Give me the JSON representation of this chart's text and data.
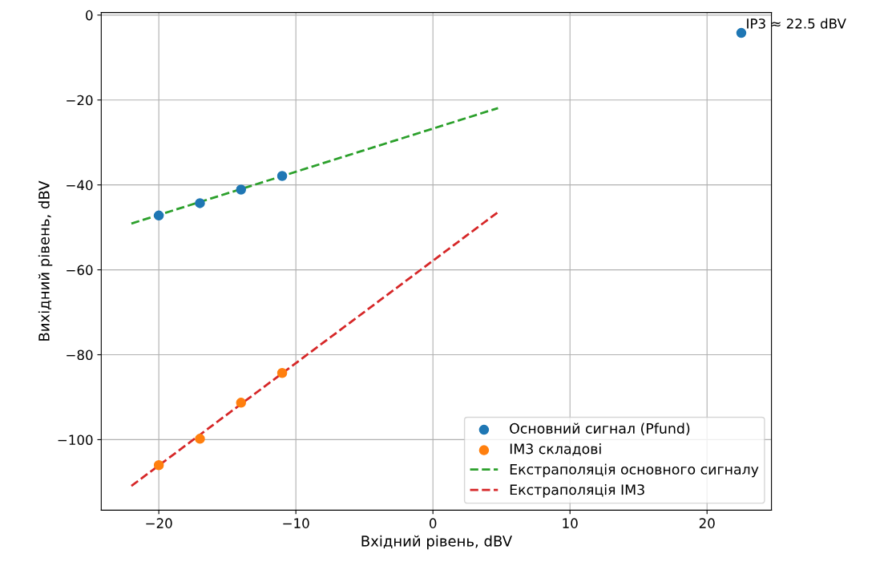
{
  "chart_data": {
    "type": "scatter",
    "xlabel": "Вхідний рівень, dBV",
    "ylabel": "Вихідний рівень, dBV",
    "xlim": [
      -24.2,
      24.7
    ],
    "ylim": [
      -116.6,
      0.6
    ],
    "xticks": [
      {
        "value": -20,
        "label": "−20"
      },
      {
        "value": -10,
        "label": "−10"
      },
      0,
      10,
      20
    ],
    "yticks": [
      0,
      {
        "value": -20,
        "label": "−20"
      },
      {
        "value": -40,
        "label": "−40"
      },
      {
        "value": -60,
        "label": "−60"
      },
      {
        "value": -80,
        "label": "−80"
      },
      {
        "value": -100,
        "label": "−100"
      }
    ],
    "grid": true,
    "legend": "bottom right",
    "series": [
      {
        "name": "Основний сигнал (Pfund)",
        "marker": "circle",
        "color": "#1f77b4",
        "x": [
          -20,
          -17,
          -14,
          -11
        ],
        "values": [
          -47.2,
          -44.3,
          -41.1,
          -37.9
        ]
      },
      {
        "name": "IM3 складові",
        "marker": "circle",
        "color": "#ff7f0e",
        "x": [
          -20,
          -17,
          -14,
          -11
        ],
        "values": [
          -106.0,
          -99.8,
          -91.3,
          -84.3
        ]
      },
      {
        "name": "Екстраполяція основного сигналу",
        "type": "line",
        "line_style": "dashed",
        "color": "#2ca02c",
        "x": [
          -22,
          4.75
        ],
        "values": [
          -49.1,
          -21.9
        ]
      },
      {
        "name": "Екстраполяція IM3",
        "type": "line",
        "line_style": "dashed",
        "color": "#d62728",
        "x": [
          -22,
          4.75
        ],
        "values": [
          -110.9,
          -46.4
        ]
      },
      {
        "marker": "circle",
        "color": "#1f77b4",
        "x": [
          22.5
        ],
        "values": [
          -4.2
        ]
      }
    ],
    "annotations": [
      {
        "text": "IP3 ≈ 22.5 dBV",
        "x": 22.5,
        "y": -4.2
      }
    ]
  }
}
